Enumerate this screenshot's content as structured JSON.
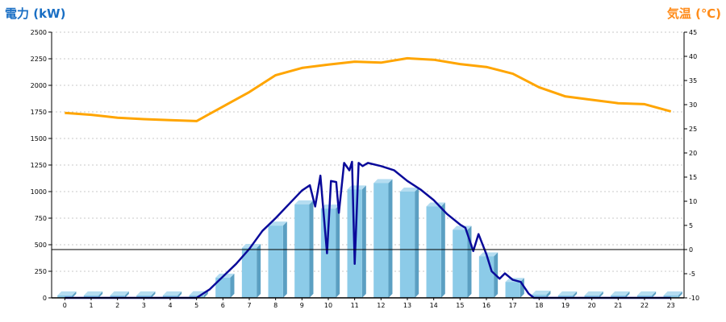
{
  "colors": {
    "left_axis_title": "#1a6fc4",
    "right_axis_title": "#ff8c1a",
    "bar_front": "#8ccbe8",
    "bar_side": "#5b9fc2",
    "bar_top": "#b5ddf1",
    "power_line": "#0a0a9a",
    "temp_line": "#ffa500",
    "grid": "#c8c8c8"
  },
  "chart_data": {
    "type": "bar",
    "y_left_label": "電力 (kW)",
    "y_right_label": "気温 (℃)",
    "categories": [
      "0",
      "1",
      "2",
      "3",
      "4",
      "5",
      "6",
      "7",
      "8",
      "9",
      "10",
      "11",
      "12",
      "13",
      "14",
      "15",
      "16",
      "17",
      "18",
      "19",
      "20",
      "21",
      "22",
      "23"
    ],
    "y_left_range": [
      0,
      2500
    ],
    "y_left_ticks": [
      "0",
      "250",
      "500",
      "750",
      "1000",
      "1250",
      "1500",
      "1750",
      "2000",
      "2250",
      "2500"
    ],
    "y_right_range": [
      -10,
      45
    ],
    "y_right_ticks": [
      "-10",
      "-5",
      "0",
      "5",
      "10",
      "15",
      "20",
      "25",
      "30",
      "35",
      "40",
      "45"
    ],
    "grid": true,
    "series": [
      {
        "kind": "bar",
        "axis": "left",
        "values": [
          0,
          0,
          0,
          0,
          0,
          25,
          190,
          470,
          680,
          880,
          840,
          1020,
          1080,
          1000,
          860,
          640,
          390,
          150,
          30,
          0,
          0,
          0,
          0,
          0
        ]
      },
      {
        "kind": "line",
        "axis": "left",
        "points": [
          [
            0,
            0
          ],
          [
            1,
            0
          ],
          [
            2,
            0
          ],
          [
            3,
            0
          ],
          [
            4,
            0
          ],
          [
            5,
            0
          ],
          [
            5.5,
            80
          ],
          [
            6,
            200
          ],
          [
            6.5,
            320
          ],
          [
            7,
            460
          ],
          [
            7.5,
            630
          ],
          [
            8,
            750
          ],
          [
            8.5,
            880
          ],
          [
            9,
            1010
          ],
          [
            9.3,
            1060
          ],
          [
            9.5,
            860
          ],
          [
            9.7,
            1150
          ],
          [
            9.95,
            420
          ],
          [
            10.1,
            1100
          ],
          [
            10.3,
            1090
          ],
          [
            10.4,
            800
          ],
          [
            10.6,
            1270
          ],
          [
            10.8,
            1200
          ],
          [
            10.9,
            1280
          ],
          [
            11,
            320
          ],
          [
            11.15,
            1270
          ],
          [
            11.3,
            1240
          ],
          [
            11.5,
            1270
          ],
          [
            12,
            1240
          ],
          [
            12.5,
            1200
          ],
          [
            13,
            1100
          ],
          [
            13.5,
            1020
          ],
          [
            14,
            920
          ],
          [
            14.5,
            790
          ],
          [
            15,
            690
          ],
          [
            15.2,
            660
          ],
          [
            15.5,
            440
          ],
          [
            15.7,
            600
          ],
          [
            16,
            410
          ],
          [
            16.2,
            250
          ],
          [
            16.5,
            180
          ],
          [
            16.7,
            230
          ],
          [
            17,
            170
          ],
          [
            17.3,
            150
          ],
          [
            17.6,
            40
          ],
          [
            17.8,
            0
          ],
          [
            18,
            0
          ],
          [
            19,
            0
          ],
          [
            20,
            0
          ],
          [
            21,
            0
          ],
          [
            22,
            0
          ],
          [
            23,
            0
          ]
        ]
      },
      {
        "kind": "line",
        "axis": "right",
        "values": [
          28.3,
          27.9,
          27.3,
          27.0,
          26.8,
          26.6,
          29.6,
          32.6,
          36.1,
          37.6,
          38.3,
          38.9,
          38.7,
          39.6,
          39.3,
          38.4,
          37.8,
          36.4,
          33.6,
          31.7,
          31.0,
          30.3,
          30.1,
          28.6
        ]
      }
    ]
  }
}
